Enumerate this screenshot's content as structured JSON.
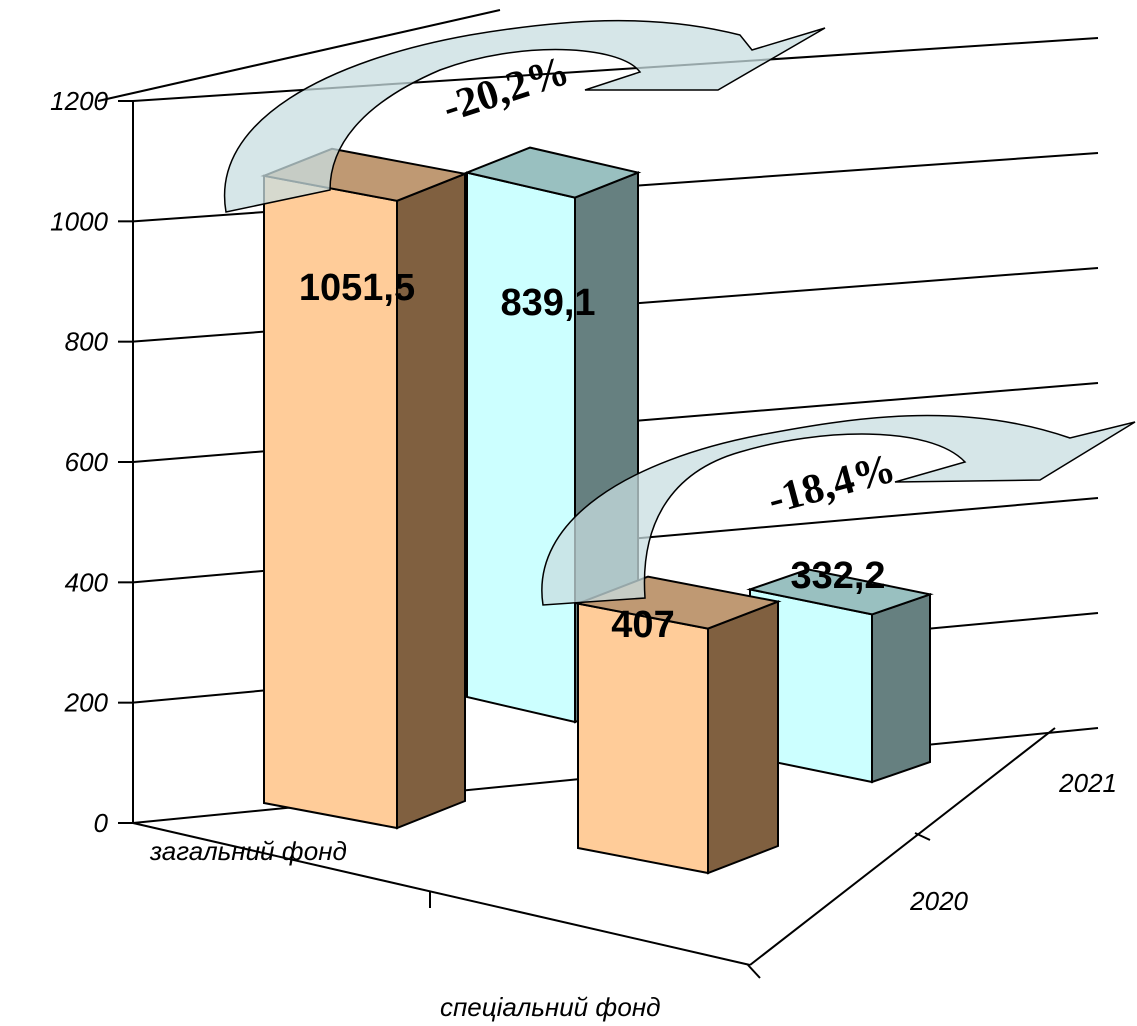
{
  "chart_data": {
    "type": "bar",
    "categories": [
      "загальний фонд",
      "спеціальний фонд"
    ],
    "series": [
      {
        "name": "2020",
        "values": [
          1051.5,
          407
        ]
      },
      {
        "name": "2021",
        "values": [
          839.1,
          332.2
        ]
      }
    ],
    "value_labels": [
      [
        "1051,5",
        "407"
      ],
      [
        "839,1",
        "332,2"
      ]
    ],
    "change_labels": [
      "-20,2%",
      "-18,4%"
    ],
    "ylim": [
      0,
      1200
    ],
    "yticks": [
      0,
      200,
      400,
      600,
      800,
      1000,
      1200
    ],
    "ytick_labels": [
      "0",
      "200",
      "400",
      "600",
      "800",
      "1000",
      "1200"
    ],
    "grid": true,
    "colors": {
      "s2020": {
        "front": "#FFCC99",
        "side": "#806040",
        "top": "#BF9973"
      },
      "s2021": {
        "front": "#CCFFFF",
        "side": "#668080",
        "top": "#99C0C0"
      },
      "arrow": "#C8DEE0"
    }
  }
}
